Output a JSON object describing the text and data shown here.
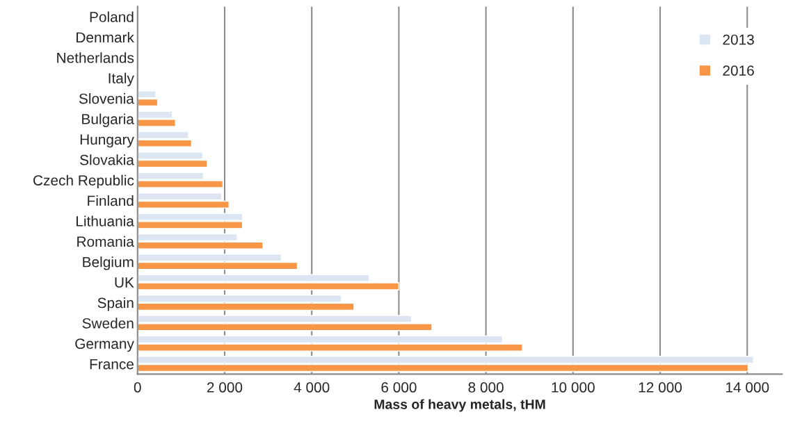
{
  "chart_data": {
    "type": "bar",
    "orientation": "horizontal",
    "xlabel": "Mass of heavy metals, tHM",
    "categories": [
      "Poland",
      "Denmark",
      "Netherlands",
      "Italy",
      "Slovenia",
      "Bulgaria",
      "Hungary",
      "Slovakia",
      "Czech Republic",
      "Finland",
      "Lithuania",
      "Romania",
      "Belgium",
      "UK",
      "Spain",
      "Sweden",
      "Germany",
      "France"
    ],
    "series": [
      {
        "name": "2013",
        "color": "#dce6f2",
        "values": [
          null,
          null,
          null,
          20,
          420,
          800,
          1170,
          1500,
          1510,
          1930,
          2410,
          2290,
          3300,
          5320,
          4680,
          6290,
          8380,
          14140
        ]
      },
      {
        "name": "2016",
        "color": "#f79646",
        "values": [
          null,
          null,
          null,
          null,
          460,
          870,
          1240,
          1600,
          1960,
          2100,
          2410,
          2880,
          3670,
          6000,
          4970,
          6760,
          8840,
          14020
        ]
      }
    ],
    "xlim": [
      0,
      14800
    ],
    "xticks": [
      0,
      {
        "value": 2000,
        "label": "2 000"
      },
      {
        "value": 4000,
        "label": "4 000"
      },
      {
        "value": 6000,
        "label": "6 000"
      },
      {
        "value": 8000,
        "label": "8 000"
      },
      {
        "value": 10000,
        "label": "10 000"
      },
      {
        "value": 12000,
        "label": "12 000"
      },
      {
        "value": 14000,
        "label": "14 000"
      }
    ],
    "grid": "x",
    "legend": "top right"
  }
}
